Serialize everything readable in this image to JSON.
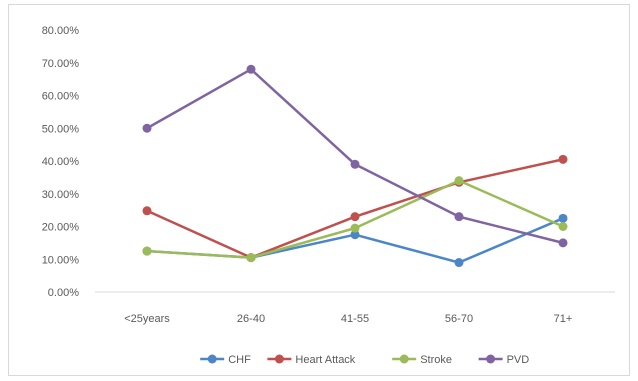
{
  "chart_data": {
    "type": "line",
    "title": "",
    "xlabel": "",
    "ylabel": "",
    "categories": [
      "<25years",
      "26-40",
      "41-55",
      "56-70",
      "71+"
    ],
    "ylim": [
      0,
      80
    ],
    "y_ticks": [
      0,
      10,
      20,
      30,
      40,
      50,
      60,
      70,
      80
    ],
    "y_tick_labels": [
      "0.00%",
      "10.00%",
      "20.00%",
      "30.00%",
      "40.00%",
      "50.00%",
      "60.00%",
      "70.00%",
      "80.00%"
    ],
    "grid": false,
    "legend_position": "bottom",
    "series": [
      {
        "name": "CHF",
        "color": "#4a86c8",
        "values": [
          12.5,
          10.5,
          17.5,
          9.0,
          22.5
        ]
      },
      {
        "name": "Heart Attack",
        "color": "#c0504d",
        "values": [
          24.8,
          10.5,
          23.0,
          33.5,
          40.5
        ]
      },
      {
        "name": "Stroke",
        "color": "#9bbb59",
        "values": [
          12.5,
          10.5,
          19.5,
          34.0,
          20.0
        ]
      },
      {
        "name": "PVD",
        "color": "#8064a2",
        "values": [
          50.0,
          68.0,
          39.0,
          23.0,
          15.0
        ]
      }
    ]
  }
}
